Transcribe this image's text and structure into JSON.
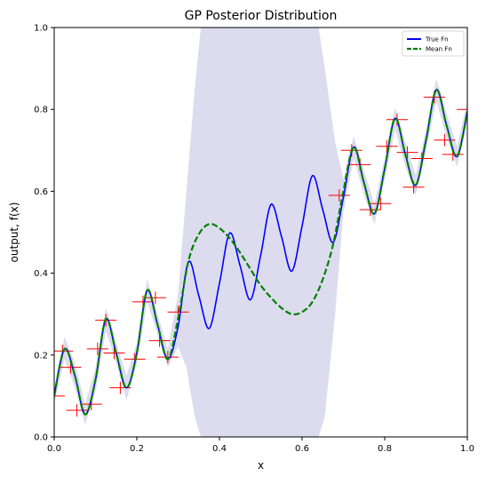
{
  "chart_data": {
    "type": "line",
    "title": "GP Posterior Distribution",
    "xlabel": "x",
    "ylabel": "output, f(x)",
    "xlim": [
      0,
      1
    ],
    "ylim": [
      0,
      1
    ],
    "xticks": [
      "0.0",
      "0.2",
      "0.4",
      "0.6",
      "0.8",
      "1.0"
    ],
    "yticks": [
      "0.0",
      "0.2",
      "0.4",
      "0.6",
      "0.8",
      "1.0"
    ],
    "grid": false,
    "legend_position": "top-right",
    "colors": {
      "true_fn": "#0000ff",
      "mean_fn": "#008000",
      "observations": "#ff0000",
      "uncertainty_band": "#dcdcee"
    },
    "series": [
      {
        "name": "True Fn",
        "style": "solid",
        "x": [
          0.0,
          0.025,
          0.05,
          0.075,
          0.1,
          0.125,
          0.15,
          0.175,
          0.2,
          0.225,
          0.25,
          0.275,
          0.3,
          0.325,
          0.35,
          0.375,
          0.4,
          0.425,
          0.45,
          0.475,
          0.5,
          0.525,
          0.55,
          0.575,
          0.6,
          0.625,
          0.65,
          0.675,
          0.7,
          0.725,
          0.75,
          0.775,
          0.8,
          0.825,
          0.85,
          0.875,
          0.9,
          0.925,
          0.95,
          0.975,
          1.0
        ],
        "y": [
          0.1,
          0.215,
          0.15,
          0.055,
          0.14,
          0.288,
          0.205,
          0.12,
          0.205,
          0.358,
          0.275,
          0.19,
          0.27,
          0.428,
          0.345,
          0.265,
          0.375,
          0.498,
          0.418,
          0.335,
          0.445,
          0.568,
          0.49,
          0.405,
          0.515,
          0.638,
          0.555,
          0.475,
          0.585,
          0.708,
          0.62,
          0.545,
          0.655,
          0.778,
          0.69,
          0.615,
          0.725,
          0.848,
          0.76,
          0.685,
          0.795
        ]
      },
      {
        "name": "Mean Fn",
        "style": "dashed",
        "x": [
          0.0,
          0.025,
          0.05,
          0.075,
          0.1,
          0.125,
          0.15,
          0.175,
          0.2,
          0.225,
          0.25,
          0.275,
          0.3,
          0.325,
          0.35,
          0.375,
          0.4,
          0.425,
          0.45,
          0.475,
          0.5,
          0.525,
          0.55,
          0.575,
          0.6,
          0.625,
          0.65,
          0.675,
          0.7,
          0.725,
          0.75,
          0.775,
          0.8,
          0.825,
          0.85,
          0.875,
          0.9,
          0.925,
          0.95,
          0.975,
          1.0
        ],
        "y": [
          0.1,
          0.215,
          0.15,
          0.055,
          0.14,
          0.288,
          0.205,
          0.12,
          0.205,
          0.358,
          0.275,
          0.19,
          0.29,
          0.43,
          0.495,
          0.52,
          0.51,
          0.485,
          0.45,
          0.41,
          0.37,
          0.34,
          0.315,
          0.3,
          0.305,
          0.33,
          0.385,
          0.47,
          0.6,
          0.708,
          0.62,
          0.545,
          0.655,
          0.778,
          0.69,
          0.615,
          0.725,
          0.848,
          0.76,
          0.685,
          0.795
        ]
      }
    ],
    "band": {
      "x": [
        0.0,
        0.025,
        0.05,
        0.075,
        0.1,
        0.125,
        0.15,
        0.175,
        0.2,
        0.225,
        0.25,
        0.275,
        0.3,
        0.32,
        0.34,
        0.355,
        0.64,
        0.655,
        0.68,
        0.7,
        0.725,
        0.75,
        0.775,
        0.8,
        0.825,
        0.85,
        0.875,
        0.9,
        0.925,
        0.95,
        0.975,
        1.0
      ],
      "lower": [
        0.08,
        0.19,
        0.12,
        0.03,
        0.11,
        0.26,
        0.18,
        0.09,
        0.18,
        0.33,
        0.25,
        0.17,
        0.22,
        0.17,
        0.05,
        0.0,
        0.0,
        0.05,
        0.3,
        0.55,
        0.68,
        0.59,
        0.52,
        0.63,
        0.75,
        0.66,
        0.59,
        0.7,
        0.82,
        0.73,
        0.66,
        0.77
      ],
      "upper": [
        0.12,
        0.245,
        0.18,
        0.08,
        0.17,
        0.315,
        0.23,
        0.15,
        0.23,
        0.385,
        0.3,
        0.215,
        0.35,
        0.6,
        0.85,
        1.0,
        1.0,
        0.9,
        0.72,
        0.63,
        0.735,
        0.65,
        0.57,
        0.68,
        0.805,
        0.72,
        0.64,
        0.75,
        0.875,
        0.79,
        0.71,
        0.82
      ]
    },
    "observations": [
      {
        "x": 0.0,
        "y": 0.1
      },
      {
        "x": 0.02,
        "y": 0.21
      },
      {
        "x": 0.04,
        "y": 0.17
      },
      {
        "x": 0.055,
        "y": 0.065
      },
      {
        "x": 0.09,
        "y": 0.08
      },
      {
        "x": 0.105,
        "y": 0.215
      },
      {
        "x": 0.125,
        "y": 0.285
      },
      {
        "x": 0.145,
        "y": 0.205
      },
      {
        "x": 0.16,
        "y": 0.12
      },
      {
        "x": 0.195,
        "y": 0.19
      },
      {
        "x": 0.215,
        "y": 0.33
      },
      {
        "x": 0.245,
        "y": 0.34
      },
      {
        "x": 0.255,
        "y": 0.235
      },
      {
        "x": 0.275,
        "y": 0.195
      },
      {
        "x": 0.3,
        "y": 0.305
      },
      {
        "x": 0.69,
        "y": 0.59
      },
      {
        "x": 0.72,
        "y": 0.7
      },
      {
        "x": 0.74,
        "y": 0.665
      },
      {
        "x": 0.765,
        "y": 0.555
      },
      {
        "x": 0.79,
        "y": 0.57
      },
      {
        "x": 0.805,
        "y": 0.71
      },
      {
        "x": 0.83,
        "y": 0.775
      },
      {
        "x": 0.855,
        "y": 0.695
      },
      {
        "x": 0.87,
        "y": 0.61
      },
      {
        "x": 0.89,
        "y": 0.68
      },
      {
        "x": 0.92,
        "y": 0.83
      },
      {
        "x": 0.945,
        "y": 0.725
      },
      {
        "x": 0.965,
        "y": 0.69
      },
      {
        "x": 1.0,
        "y": 0.8
      }
    ]
  }
}
